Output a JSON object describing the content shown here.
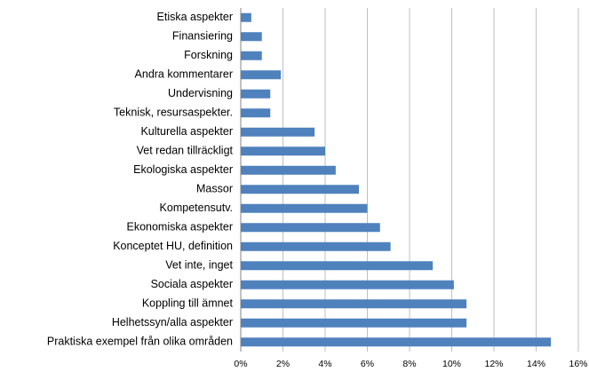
{
  "chart_data": {
    "type": "bar",
    "orientation": "horizontal",
    "categories": [
      "Etiska aspekter",
      "Finansiering",
      "Forskning",
      "Andra kommentarer",
      "Undervisning",
      "Teknisk, resursaspekter.",
      "Kulturella aspekter",
      "Vet redan tillräckligt",
      "Ekologiska aspekter",
      "Massor",
      "Kompetensutv.",
      "Ekonomiska aspekter",
      "Konceptet HU, definition",
      "Vet inte, inget",
      "Sociala aspekter",
      "Koppling till ämnet",
      "Helhetssyn/alla aspekter",
      "Praktiska exempel från olika områden"
    ],
    "values": [
      0.5,
      1.0,
      1.0,
      1.9,
      1.4,
      1.4,
      3.5,
      4.0,
      4.5,
      5.6,
      6.0,
      6.6,
      7.1,
      9.1,
      10.1,
      10.7,
      10.7,
      14.7
    ],
    "color": "#4f81bd",
    "xlim": [
      0,
      16
    ],
    "xticks": [
      {
        "value": 0,
        "label": "0%"
      },
      {
        "value": 2,
        "label": "2%"
      },
      {
        "value": 4,
        "label": "4%"
      },
      {
        "value": 6,
        "label": "6%"
      },
      {
        "value": 8,
        "label": "8%"
      },
      {
        "value": 10,
        "label": "10%"
      },
      {
        "value": 12,
        "label": "12%"
      },
      {
        "value": 14,
        "label": "14%"
      },
      {
        "value": 16,
        "label": "16%"
      }
    ],
    "grid": true
  }
}
